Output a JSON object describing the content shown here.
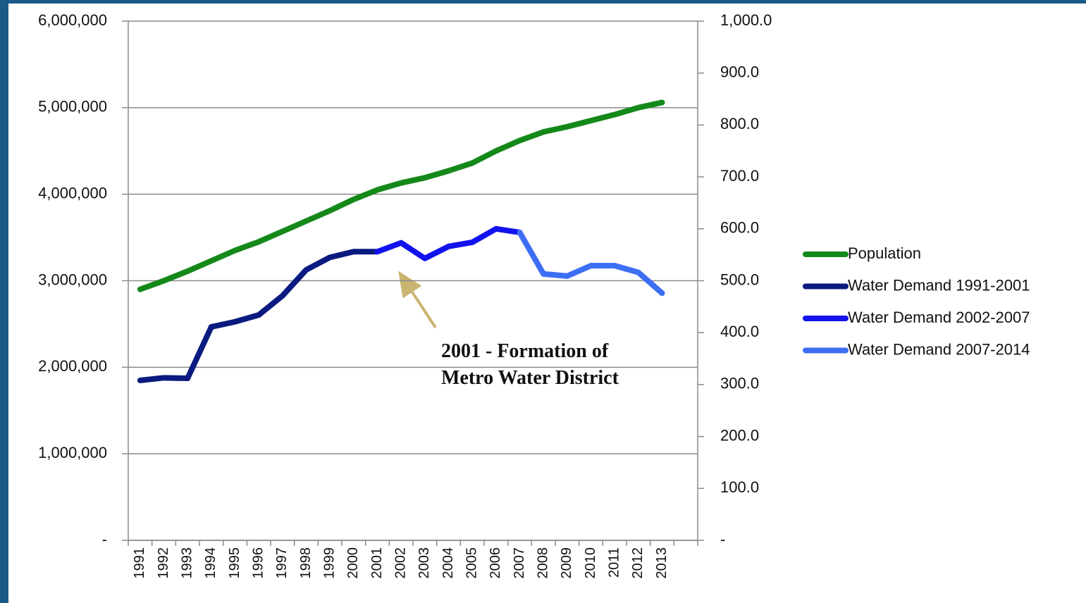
{
  "chart_data": {
    "type": "line",
    "categories": [
      "1991",
      "1992",
      "1993",
      "1994",
      "1995",
      "1996",
      "1997",
      "1998",
      "1999",
      "2000",
      "2001",
      "2002",
      "2003",
      "2004",
      "2005",
      "2006",
      "2007",
      "2008",
      "2009",
      "2010",
      "2011",
      "2012",
      "2013",
      null
    ],
    "series": [
      {
        "name": "Population",
        "color": "#14891a",
        "axis": "y",
        "values": [
          2900000,
          3000000,
          3110000,
          3230000,
          3350000,
          3450000,
          3570000,
          3690000,
          3810000,
          3940000,
          4050000,
          4130000,
          4190000,
          4270000,
          4360000,
          4500000,
          4620000,
          4720000,
          4780000,
          4850000,
          4920000,
          5000000,
          5060000,
          null
        ]
      },
      {
        "name": "Water Demand 1991-2001",
        "color": "#0b1a80",
        "axis": "y2",
        "values": [
          308,
          313,
          312,
          411,
          421,
          434,
          471,
          521,
          545,
          556,
          556,
          null,
          null,
          null,
          null,
          null,
          null,
          null,
          null,
          null,
          null,
          null,
          null,
          null
        ]
      },
      {
        "name": "Water Demand 2002-2007",
        "color": "#1212ee",
        "axis": "y2",
        "values": [
          null,
          null,
          null,
          null,
          null,
          null,
          null,
          null,
          null,
          null,
          556,
          573,
          543,
          566,
          574,
          600,
          593,
          null,
          null,
          null,
          null,
          null,
          null,
          null
        ]
      },
      {
        "name": "Water Demand 2007-2014",
        "color": "#3d6ff4",
        "axis": "y2",
        "values": [
          null,
          null,
          null,
          null,
          null,
          null,
          null,
          null,
          null,
          null,
          null,
          null,
          null,
          null,
          null,
          null,
          593,
          513,
          509,
          529,
          529,
          516,
          476,
          null
        ]
      }
    ],
    "ylim": [
      0,
      6000000
    ],
    "yticks": [
      {
        "value": 0,
        "label": "-"
      },
      {
        "value": 1000000,
        "label": "1,000,000"
      },
      {
        "value": 2000000,
        "label": "2,000,000"
      },
      {
        "value": 3000000,
        "label": "3,000,000"
      },
      {
        "value": 4000000,
        "label": "4,000,000"
      },
      {
        "value": 5000000,
        "label": "5,000,000"
      },
      {
        "value": 6000000,
        "label": "6,000,000"
      }
    ],
    "y2lim": [
      0,
      1000
    ],
    "y2ticks": [
      {
        "value": 0,
        "label": "-"
      },
      {
        "value": 100,
        "label": "100.0"
      },
      {
        "value": 200,
        "label": "200.0"
      },
      {
        "value": 300,
        "label": "300.0"
      },
      {
        "value": 400,
        "label": "400.0"
      },
      {
        "value": 500,
        "label": "500.0"
      },
      {
        "value": 600,
        "label": "600.0"
      },
      {
        "value": 700,
        "label": "700.0"
      },
      {
        "value": 800,
        "label": "800.0"
      },
      {
        "value": 900,
        "label": "900.0"
      },
      {
        "value": 1000,
        "label": "1,000.0"
      }
    ],
    "grid": true,
    "legend": "right",
    "annotation": "2001 - Formation of Metro Water District"
  }
}
